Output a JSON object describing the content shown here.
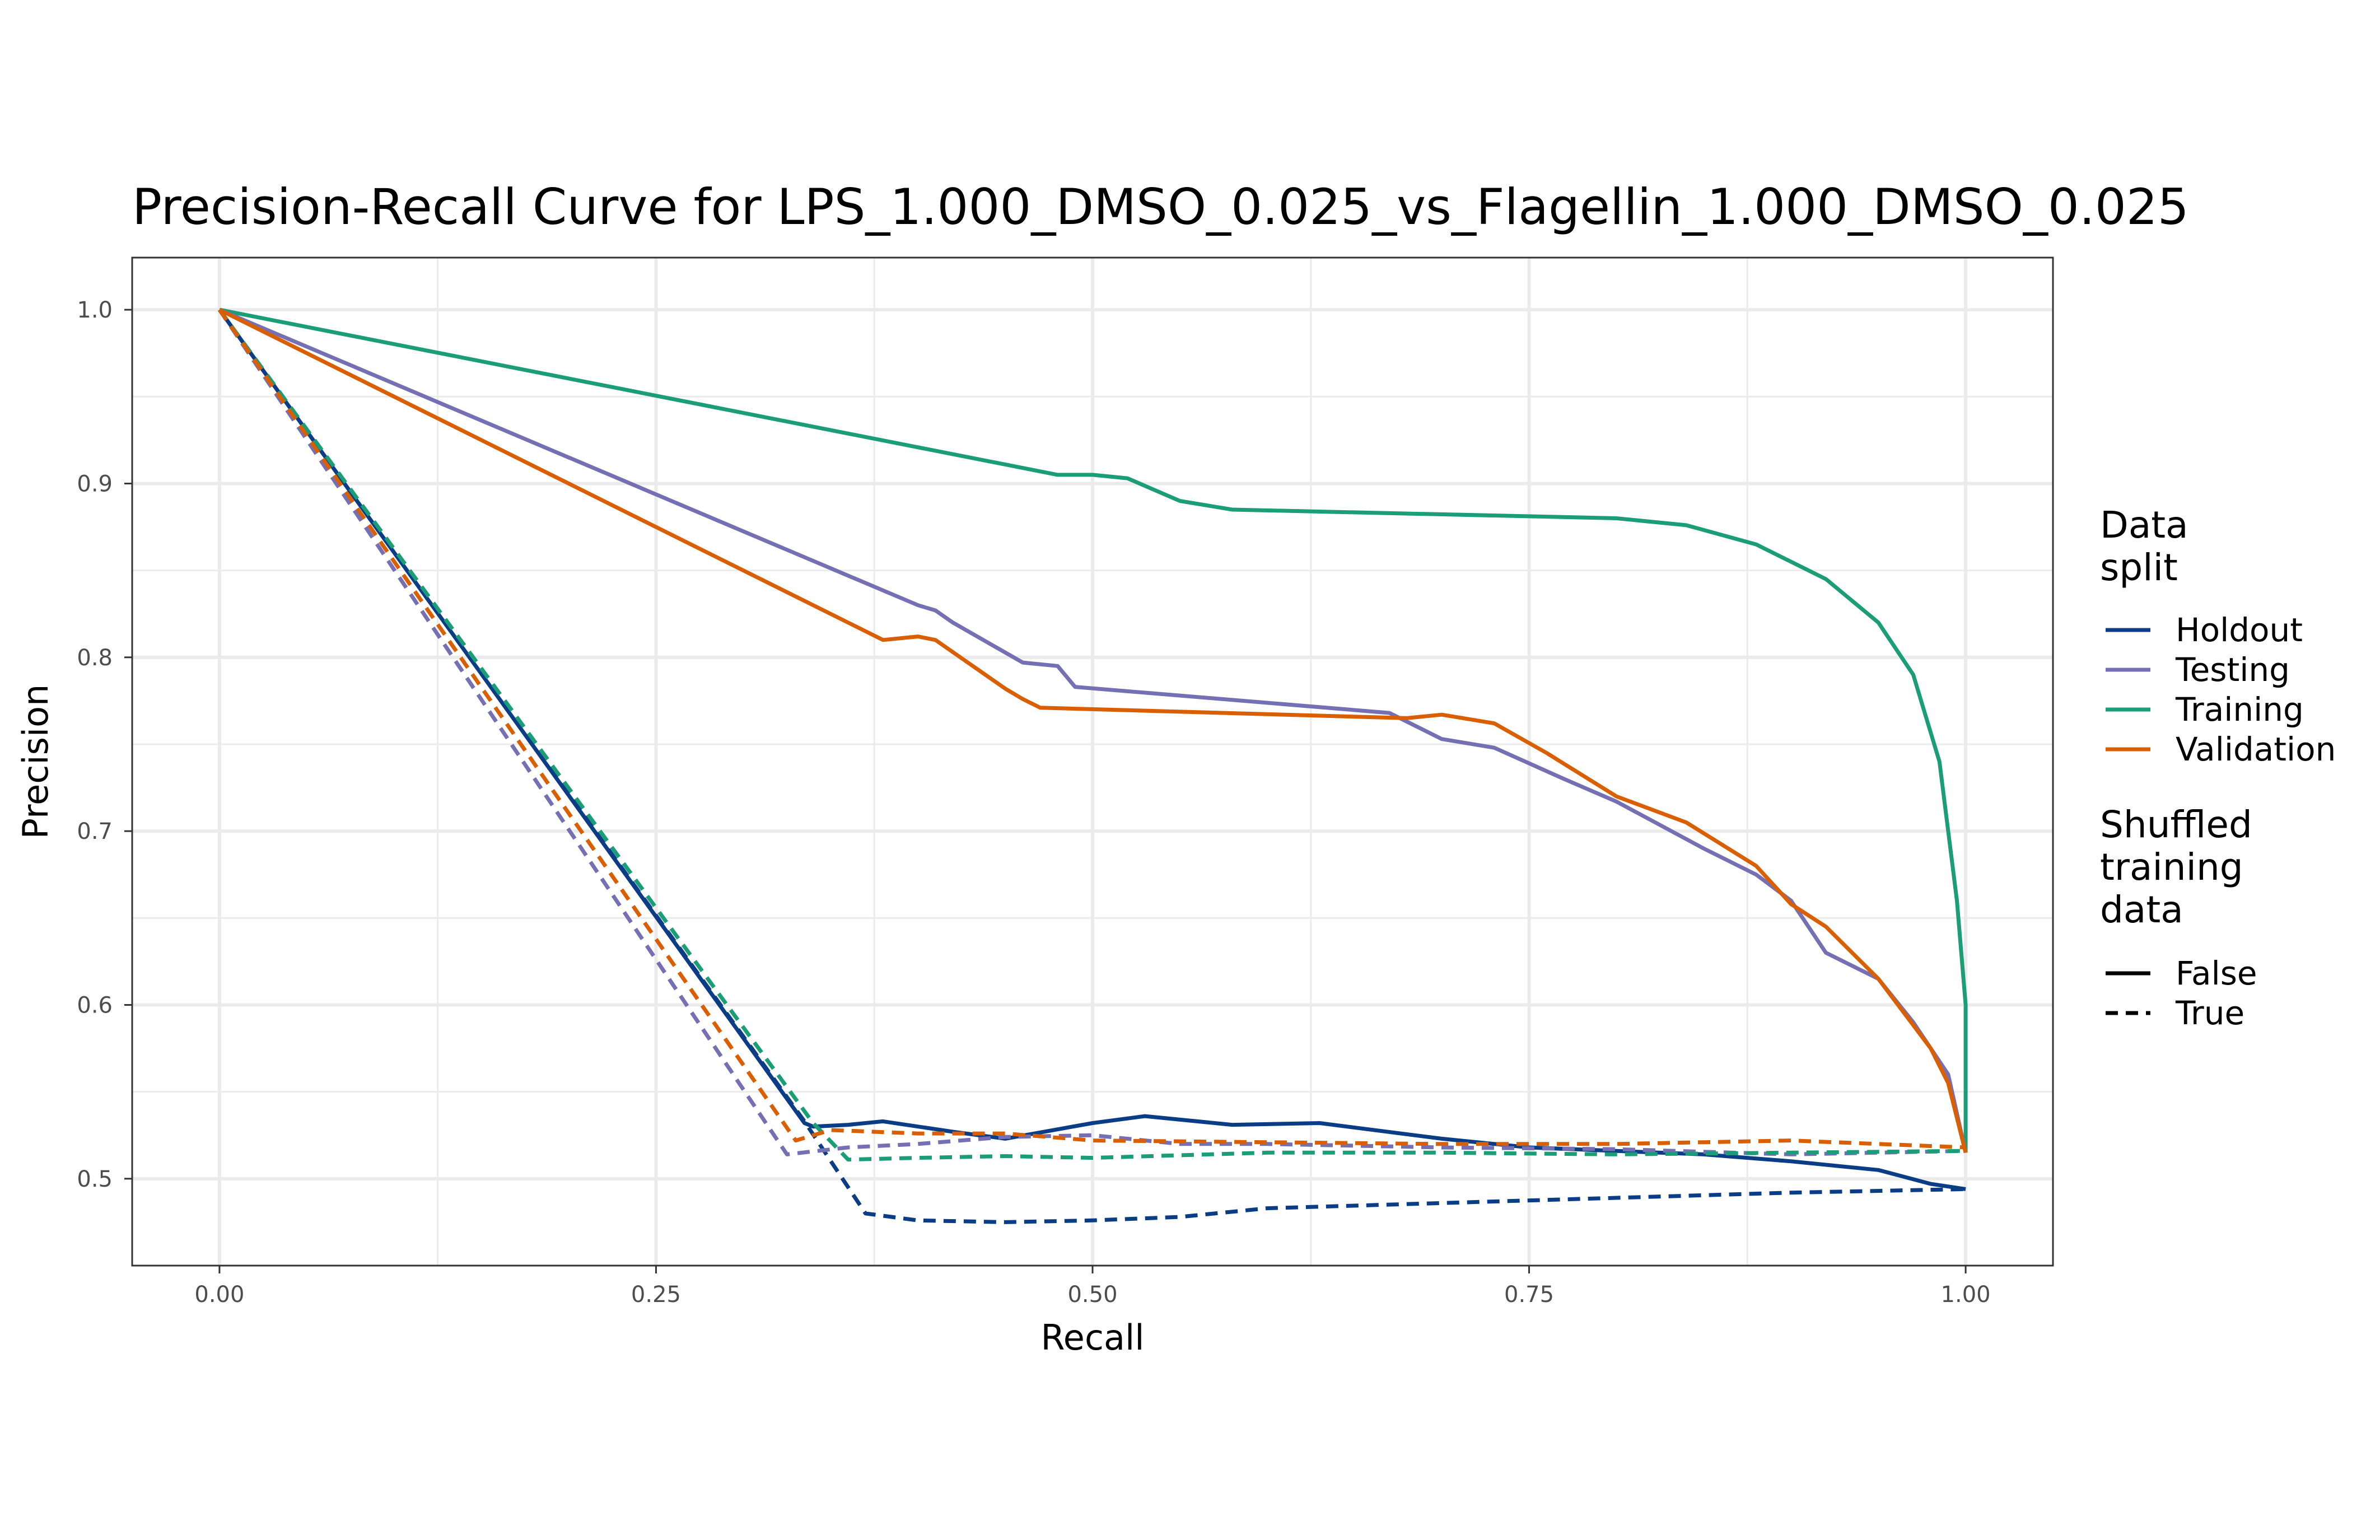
{
  "chart_data": {
    "type": "line",
    "title": "Precision-Recall Curve for LPS_1.000_DMSO_0.025_vs_Flagellin_1.000_DMSO_0.025",
    "xlabel": "Recall",
    "ylabel": "Precision",
    "xlim": [
      -0.05,
      1.05
    ],
    "ylim": [
      0.45,
      1.03
    ],
    "xticks": [
      0.0,
      0.25,
      0.5,
      0.75,
      1.0
    ],
    "xtick_labels": [
      "0.00",
      "0.25",
      "0.50",
      "0.75",
      "1.00"
    ],
    "yticks": [
      0.5,
      0.6,
      0.7,
      0.8,
      0.9,
      1.0
    ],
    "ytick_labels": [
      "0.5",
      "0.6",
      "0.7",
      "0.8",
      "0.9",
      "1.0"
    ],
    "grid": true,
    "legend": {
      "position": "right",
      "color_title": [
        "Data",
        "split"
      ],
      "color_entries": [
        "Holdout",
        "Testing",
        "Training",
        "Validation"
      ],
      "linetype_title": [
        "Shuffled",
        "training",
        "data"
      ],
      "linetype_entries": [
        "False",
        "True"
      ]
    },
    "colors": {
      "Holdout": "#0b3d86",
      "Testing": "#7570b3",
      "Training": "#1b9e77",
      "Validation": "#d95f02"
    },
    "series": [
      {
        "name": "Training",
        "shuffled": "False",
        "x": [
          0.0,
          0.48,
          0.5,
          0.52,
          0.55,
          0.58,
          0.8,
          0.84,
          0.88,
          0.92,
          0.95,
          0.97,
          0.985,
          0.995,
          1.0,
          1.0
        ],
        "y": [
          1.0,
          0.905,
          0.905,
          0.903,
          0.89,
          0.885,
          0.88,
          0.876,
          0.865,
          0.845,
          0.82,
          0.79,
          0.74,
          0.66,
          0.6,
          0.515
        ]
      },
      {
        "name": "Testing",
        "shuffled": "False",
        "x": [
          0.0,
          0.4,
          0.41,
          0.42,
          0.46,
          0.48,
          0.49,
          0.67,
          0.7,
          0.73,
          0.77,
          0.8,
          0.85,
          0.88,
          0.9,
          0.92,
          0.95,
          0.97,
          0.99,
          1.0
        ],
        "y": [
          1.0,
          0.83,
          0.827,
          0.82,
          0.797,
          0.795,
          0.783,
          0.768,
          0.753,
          0.748,
          0.73,
          0.717,
          0.69,
          0.675,
          0.66,
          0.63,
          0.615,
          0.59,
          0.56,
          0.515
        ]
      },
      {
        "name": "Validation",
        "shuffled": "False",
        "x": [
          0.0,
          0.38,
          0.4,
          0.41,
          0.45,
          0.46,
          0.47,
          0.68,
          0.7,
          0.73,
          0.76,
          0.8,
          0.84,
          0.88,
          0.9,
          0.92,
          0.95,
          0.98,
          0.99,
          1.0
        ],
        "y": [
          1.0,
          0.81,
          0.812,
          0.81,
          0.782,
          0.776,
          0.771,
          0.765,
          0.767,
          0.762,
          0.745,
          0.72,
          0.705,
          0.68,
          0.658,
          0.645,
          0.615,
          0.575,
          0.555,
          0.515
        ]
      },
      {
        "name": "Holdout",
        "shuffled": "False",
        "x": [
          0.0,
          0.335,
          0.34,
          0.36,
          0.38,
          0.42,
          0.45,
          0.5,
          0.53,
          0.58,
          0.63,
          0.7,
          0.75,
          0.8,
          0.85,
          0.9,
          0.95,
          0.98,
          1.0
        ],
        "y": [
          1.0,
          0.532,
          0.53,
          0.531,
          0.533,
          0.527,
          0.523,
          0.532,
          0.536,
          0.531,
          0.532,
          0.523,
          0.518,
          0.516,
          0.514,
          0.51,
          0.505,
          0.497,
          0.494
        ]
      },
      {
        "name": "Holdout",
        "shuffled": "True",
        "x": [
          0.0,
          0.335,
          0.37,
          0.4,
          0.45,
          0.5,
          0.55,
          0.6,
          0.7,
          0.8,
          0.9,
          1.0
        ],
        "y": [
          1.0,
          0.533,
          0.48,
          0.476,
          0.475,
          0.476,
          0.478,
          0.483,
          0.486,
          0.489,
          0.492,
          0.494
        ]
      },
      {
        "name": "Testing",
        "shuffled": "True",
        "x": [
          0.0,
          0.325,
          0.36,
          0.4,
          0.45,
          0.5,
          0.55,
          0.6,
          0.7,
          0.8,
          0.9,
          1.0
        ],
        "y": [
          1.0,
          0.514,
          0.518,
          0.52,
          0.524,
          0.525,
          0.52,
          0.52,
          0.518,
          0.517,
          0.514,
          0.516
        ]
      },
      {
        "name": "Training",
        "shuffled": "True",
        "x": [
          0.0,
          0.34,
          0.36,
          0.4,
          0.45,
          0.5,
          0.6,
          0.7,
          0.8,
          0.9,
          1.0
        ],
        "y": [
          1.0,
          0.532,
          0.511,
          0.512,
          0.513,
          0.512,
          0.515,
          0.515,
          0.514,
          0.515,
          0.516
        ]
      },
      {
        "name": "Validation",
        "shuffled": "True",
        "x": [
          0.0,
          0.33,
          0.35,
          0.4,
          0.45,
          0.5,
          0.6,
          0.7,
          0.8,
          0.9,
          1.0
        ],
        "y": [
          1.0,
          0.522,
          0.528,
          0.526,
          0.526,
          0.522,
          0.521,
          0.52,
          0.52,
          0.522,
          0.518
        ]
      }
    ]
  }
}
